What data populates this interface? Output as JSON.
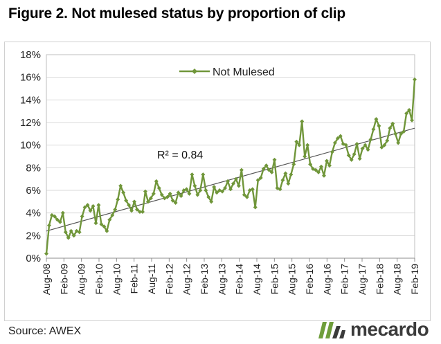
{
  "title": "Figure 2. Not mulesed status by proportion of clip",
  "source": "Source: AWEX",
  "logo_text": "mecardo",
  "colors": {
    "series": "#70963a",
    "trend": "#555555",
    "grid": "#d9d9d9",
    "logo_green": "#6f9e3b"
  },
  "chart_data": {
    "type": "line",
    "title": "Figure 2. Not mulesed status by proportion of clip",
    "xlabel": "",
    "ylabel": "",
    "ylim": [
      0,
      18
    ],
    "yticks": [
      "0%",
      "2%",
      "4%",
      "6%",
      "8%",
      "10%",
      "12%",
      "14%",
      "16%",
      "18%"
    ],
    "grid": true,
    "legend_position": "top-center",
    "x_start": "Aug-08",
    "x_end": "Feb-19",
    "x_tick_labels": [
      "Aug-08",
      "Feb-09",
      "Aug-09",
      "Feb-10",
      "Aug-10",
      "Feb-11",
      "Aug-11",
      "Feb-12",
      "Aug-12",
      "Feb-13",
      "Aug-13",
      "Feb-14",
      "Aug-14",
      "Feb-15",
      "Aug-15",
      "Feb-16",
      "Aug-16",
      "Feb-17",
      "Aug-17",
      "Feb-18",
      "Aug-18",
      "Feb-19"
    ],
    "series": [
      {
        "name": "Not Mulesed",
        "values": [
          0.4,
          2.9,
          3.8,
          3.7,
          3.4,
          3.2,
          4.0,
          2.3,
          1.8,
          2.4,
          2.0,
          2.4,
          2.3,
          3.7,
          4.5,
          4.7,
          4.2,
          4.6,
          3.1,
          4.7,
          3.0,
          2.8,
          2.4,
          3.4,
          3.8,
          4.3,
          5.2,
          6.4,
          5.8,
          5.1,
          4.7,
          4.2,
          5.0,
          4.3,
          4.1,
          4.1,
          5.9,
          5.0,
          5.3,
          5.7,
          6.8,
          6.2,
          5.6,
          5.3,
          5.4,
          5.7,
          5.1,
          4.9,
          5.8,
          5.5,
          6.0,
          6.1,
          5.7,
          7.4,
          6.4,
          5.6,
          6.0,
          7.4,
          6.0,
          5.4,
          5.0,
          6.3,
          5.8,
          6.0,
          5.9,
          6.2,
          6.8,
          6.1,
          6.6,
          7.0,
          6.4,
          7.8,
          5.6,
          5.4,
          6.0,
          6.1,
          4.5,
          6.9,
          7.1,
          7.9,
          8.2,
          7.8,
          7.6,
          8.7,
          6.2,
          6.1,
          6.9,
          7.5,
          6.6,
          7.4,
          8.3,
          10.3,
          10.0,
          12.1,
          9.0,
          10.0,
          8.3,
          7.9,
          7.8,
          7.6,
          8.1,
          7.3,
          8.6,
          8.2,
          9.4,
          10.2,
          10.6,
          10.8,
          10.1,
          10.0,
          9.1,
          8.7,
          9.2,
          10.1,
          8.8,
          9.7,
          10.0,
          9.6,
          10.5,
          11.4,
          12.3,
          11.7,
          9.8,
          10.0,
          10.4,
          11.5,
          11.9,
          11.0,
          10.2,
          11.0,
          11.2,
          12.8,
          13.1,
          12.2,
          15.8
        ]
      }
    ],
    "trendline": {
      "label": "R² = 0.84",
      "start": 2.4,
      "end": 11.5
    }
  }
}
